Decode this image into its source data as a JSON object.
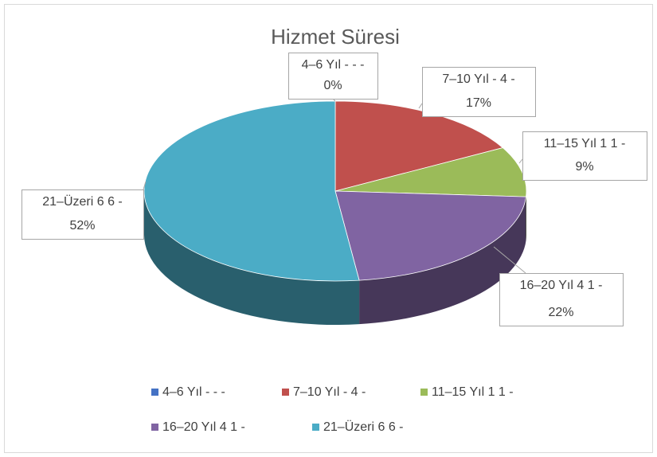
{
  "chart_data": {
    "type": "pie",
    "title": "Hizmet Süresi",
    "categories": [
      "4–6 Yıl - - -",
      "7–10 Yıl - 4 -",
      "11–15 Yıl 1 1 -",
      "16–20 Yıl 4 1 -",
      "21–Üzeri 6 6 -"
    ],
    "values": [
      0,
      17,
      9,
      22,
      52
    ],
    "value_labels": [
      "0%",
      "17%",
      "9%",
      "22%",
      "52%"
    ],
    "colors": [
      "#4472c4",
      "#c0504d",
      "#9bbb59",
      "#8064a2",
      "#4bacc6"
    ],
    "legend": "bottom"
  }
}
